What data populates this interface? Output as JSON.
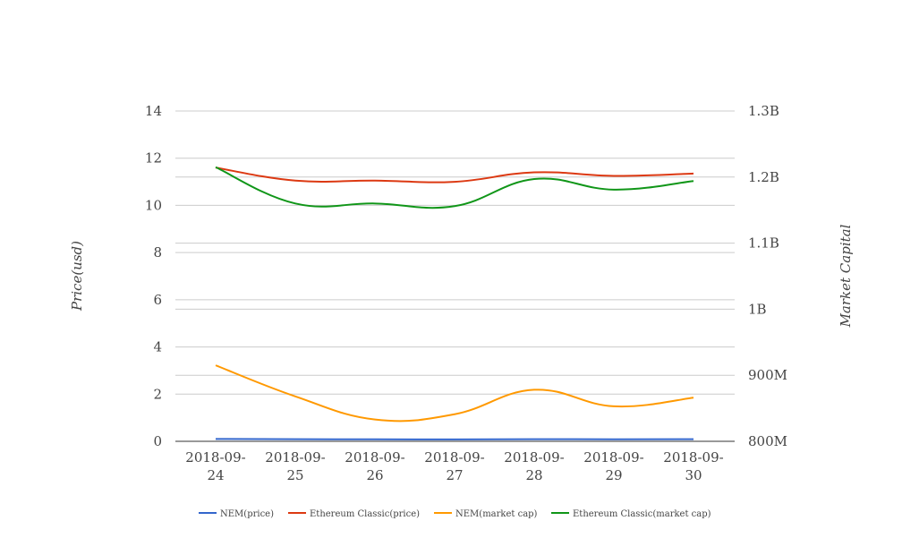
{
  "chart_data": {
    "type": "line",
    "title": "",
    "categories": [
      "2018-09-24",
      "2018-09-25",
      "2018-09-26",
      "2018-09-27",
      "2018-09-28",
      "2018-09-29",
      "2018-09-30"
    ],
    "x_tick_labels": [
      [
        "2018-09-",
        "24"
      ],
      [
        "2018-09-",
        "25"
      ],
      [
        "2018-09-",
        "26"
      ],
      [
        "2018-09-",
        "27"
      ],
      [
        "2018-09-",
        "28"
      ],
      [
        "2018-09-",
        "29"
      ],
      [
        "2018-09-",
        "30"
      ]
    ],
    "y_left": {
      "label": "Price(usd)",
      "ylim": [
        0,
        14
      ],
      "ticks": [
        0,
        2,
        4,
        6,
        8,
        10,
        12,
        14
      ],
      "tick_labels": [
        "0",
        "2",
        "4",
        "6",
        "8",
        "10",
        "12",
        "14"
      ]
    },
    "y_right": {
      "label": "Market Capital",
      "ylim": [
        800000000,
        1300000000
      ],
      "ticks": [
        800000000,
        900000000,
        1000000000,
        1100000000,
        1200000000,
        1300000000
      ],
      "tick_labels": [
        "800M",
        "900M",
        "1B",
        "1.1B",
        "1.2B",
        "1.3B"
      ]
    },
    "grid": true,
    "legend_position": "bottom",
    "series": [
      {
        "name": "NEM(price)",
        "axis": "left",
        "color": "#3366cc",
        "values": [
          0.1,
          0.09,
          0.085,
          0.08,
          0.09,
          0.085,
          0.09
        ]
      },
      {
        "name": "Ethereum Classic(price)",
        "axis": "left",
        "color": "#dc3912",
        "values": [
          11.6,
          11.05,
          11.05,
          11.0,
          11.4,
          11.25,
          11.35
        ]
      },
      {
        "name": "NEM(market cap)",
        "axis": "right",
        "color": "#ff9900",
        "values": [
          915000000,
          868000000,
          833000000,
          841000000,
          878000000,
          853000000,
          866000000
        ]
      },
      {
        "name": "Ethereum Classic(market cap)",
        "axis": "right",
        "color": "#109618",
        "values": [
          1215000000,
          1160000000,
          1160000000,
          1156000000,
          1197000000,
          1181000000,
          1194000000
        ]
      }
    ]
  }
}
